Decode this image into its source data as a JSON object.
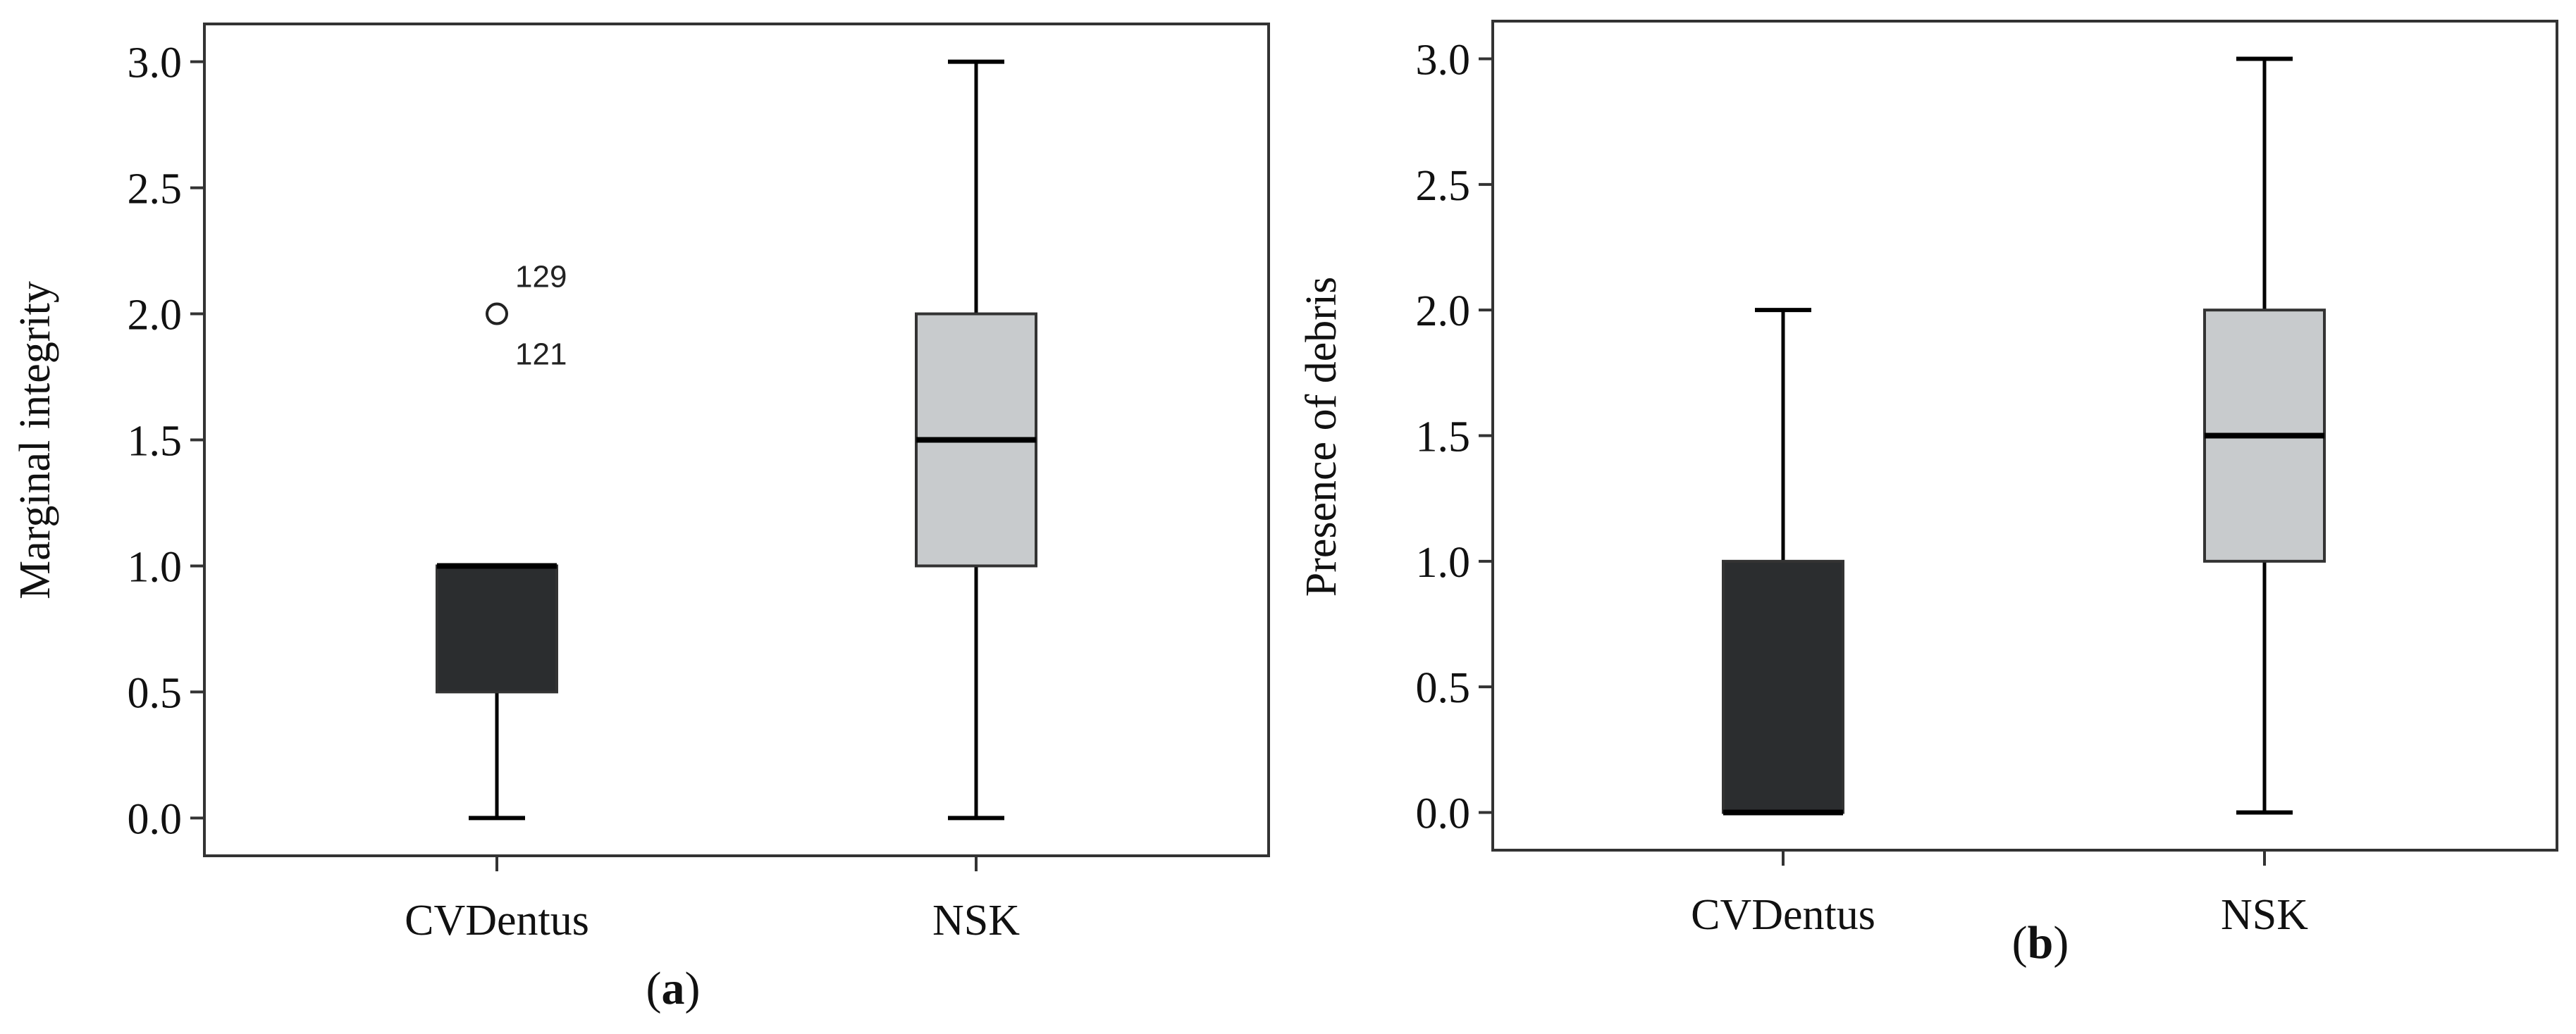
{
  "chart_data": [
    {
      "panel_label_open": "(",
      "panel_label_letter": "a",
      "panel_label_close": ")",
      "type": "boxplot",
      "title": "",
      "xlabel": "",
      "ylabel": "Marginal integrity",
      "ylim": [
        -0.15,
        3.15
      ],
      "yticks": [
        0.0,
        0.5,
        1.0,
        1.5,
        2.0,
        2.5,
        3.0
      ],
      "ytick_labels": [
        "0.0",
        "0.5",
        "1.0",
        "1.5",
        "2.0",
        "2.5",
        "3.0"
      ],
      "categories": [
        "CVDentus",
        "NSK"
      ],
      "boxes": [
        {
          "name": "CVDentus",
          "min": 0.0,
          "q1": 0.5,
          "median": 1.0,
          "q3": 1.0,
          "max": 1.0,
          "color": "#2b2d2f",
          "outliers": [
            {
              "value": 2.0,
              "labels": [
                "129",
                "121"
              ]
            }
          ]
        },
        {
          "name": "NSK",
          "min": 0.0,
          "q1": 1.0,
          "median": 1.5,
          "q3": 2.0,
          "max": 3.0,
          "color": "#c8cbcd",
          "outliers": []
        }
      ]
    },
    {
      "panel_label_open": "(",
      "panel_label_letter": "b",
      "panel_label_close": ")",
      "type": "boxplot",
      "title": "",
      "xlabel": "",
      "ylabel": "Presence of debris",
      "ylim": [
        -0.15,
        3.15
      ],
      "yticks": [
        0.0,
        0.5,
        1.0,
        1.5,
        2.0,
        2.5,
        3.0
      ],
      "ytick_labels": [
        "0.0",
        "0.5",
        "1.0",
        "1.5",
        "2.0",
        "2.5",
        "3.0"
      ],
      "categories": [
        "CVDentus",
        "NSK"
      ],
      "boxes": [
        {
          "name": "CVDentus",
          "min": 0.0,
          "q1": 0.0,
          "median": 0.0,
          "q3": 1.0,
          "max": 2.0,
          "color": "#2b2d2f",
          "outliers": []
        },
        {
          "name": "NSK",
          "min": 0.0,
          "q1": 1.0,
          "median": 1.5,
          "q3": 2.0,
          "max": 3.0,
          "color": "#c8cbcd",
          "outliers": []
        }
      ]
    }
  ]
}
